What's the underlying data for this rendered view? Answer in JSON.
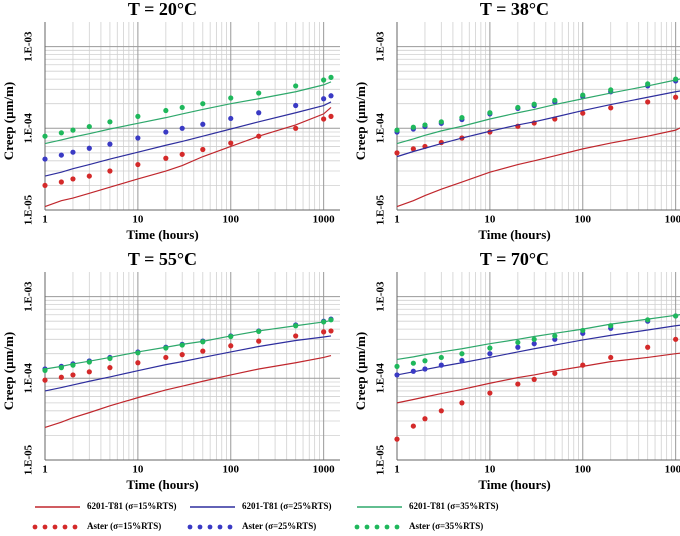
{
  "chart_data": [
    {
      "type": "line",
      "title": "T = 20°C",
      "x_label": "Time (hours)",
      "y_label": "Creep (µm/m)",
      "log_x": true,
      "log_y": true,
      "grid": true,
      "xlim": [
        1,
        1500
      ],
      "ylim": [
        1e-05,
        0.002
      ],
      "xticks": [
        1,
        10,
        100,
        1000
      ],
      "yticks": [
        {
          "value": 1e-05,
          "label": "1.E-05"
        },
        {
          "value": 0.0001,
          "label": "1.E-04"
        },
        {
          "value": 0.001,
          "label": "1.E-03"
        }
      ],
      "x": [
        1,
        1.5,
        2,
        3,
        5,
        10,
        20,
        30,
        50,
        100,
        200,
        500,
        1000,
        1200
      ],
      "series": [
        {
          "name": "6201-T81 (σ=15%RTS)",
          "style": "line",
          "color": "#c0272d",
          "values": [
            1.1e-05,
            1.3e-05,
            1.4e-05,
            1.6e-05,
            1.9e-05,
            2.4e-05,
            3e-05,
            3.5e-05,
            4.5e-05,
            6e-05,
            8e-05,
            0.00011,
            0.00015,
            0.00018
          ]
        },
        {
          "name": "Aster  (σ=15%RTS)",
          "style": "dots",
          "color": "#d42a2a",
          "values": [
            2e-05,
            2.2e-05,
            2.4e-05,
            2.6e-05,
            3e-05,
            3.6e-05,
            4.3e-05,
            4.8e-05,
            5.5e-05,
            6.6e-05,
            8e-05,
            0.0001,
            0.00013,
            0.00014
          ]
        },
        {
          "name": "6201-T81 (σ=25%RTS)",
          "style": "line",
          "color": "#2e2e9e",
          "values": [
            2.6e-05,
            2.9e-05,
            3.2e-05,
            3.6e-05,
            4.2e-05,
            5.1e-05,
            6.2e-05,
            6.9e-05,
            8e-05,
            9.8e-05,
            0.00012,
            0.000155,
            0.00019,
            0.00021
          ]
        },
        {
          "name": "Aster  (σ=25%RTS)",
          "style": "dots",
          "color": "#3a3ac4",
          "values": [
            4.2e-05,
            4.7e-05,
            5.1e-05,
            5.7e-05,
            6.4e-05,
            7.6e-05,
            9e-05,
            0.0001,
            0.000112,
            0.000132,
            0.000155,
            0.00019,
            0.00023,
            0.00025
          ]
        },
        {
          "name": "6201-T81 (σ=35%RTS)",
          "style": "line",
          "color": "#2ea86b",
          "values": [
            6.5e-05,
            7.2e-05,
            7.8e-05,
            8.6e-05,
            9.8e-05,
            0.000115,
            0.000135,
            0.00015,
            0.00017,
            0.0002,
            0.00023,
            0.00028,
            0.00034,
            0.00037
          ]
        },
        {
          "name": "Aster  (σ=35%RTS)",
          "style": "dots",
          "color": "#1fb85c",
          "values": [
            8e-05,
            8.8e-05,
            9.5e-05,
            0.000105,
            0.00012,
            0.00014,
            0.000165,
            0.00018,
            0.0002,
            0.000235,
            0.00027,
            0.00033,
            0.00039,
            0.00042
          ]
        }
      ]
    },
    {
      "type": "line",
      "title": "T = 38°C",
      "x_label": "Time (hours)",
      "y_label": "Creep (µm/m)",
      "log_x": true,
      "log_y": true,
      "grid": true,
      "xlim": [
        1,
        1500
      ],
      "ylim": [
        1e-05,
        0.002
      ],
      "xticks": [
        1,
        10,
        100,
        1000
      ],
      "yticks": [
        {
          "value": 1e-05,
          "label": "1.E-05"
        },
        {
          "value": 0.0001,
          "label": "1.E-04"
        },
        {
          "value": 0.001,
          "label": "1.E-03"
        }
      ],
      "x": [
        1,
        1.5,
        2,
        3,
        5,
        10,
        20,
        30,
        50,
        100,
        200,
        500,
        1000,
        1200
      ],
      "series": [
        {
          "name": "6201-T81 (σ=15%RTS)",
          "style": "line",
          "color": "#c0272d",
          "values": [
            1.1e-05,
            1.3e-05,
            1.5e-05,
            1.8e-05,
            2.2e-05,
            2.9e-05,
            3.6e-05,
            4e-05,
            4.6e-05,
            5.6e-05,
            6.6e-05,
            8e-05,
            9.5e-05,
            0.000105
          ]
        },
        {
          "name": "Aster  (σ=15%RTS)",
          "style": "dots",
          "color": "#d42a2a",
          "values": [
            5e-05,
            5.6e-05,
            6e-05,
            6.7e-05,
            7.6e-05,
            9e-05,
            0.000106,
            0.000116,
            0.00013,
            0.000153,
            0.000178,
            0.00021,
            0.00024,
            0.00025
          ]
        },
        {
          "name": "6201-T81 (σ=25%RTS)",
          "style": "line",
          "color": "#2e2e9e",
          "values": [
            4.5e-05,
            5.2e-05,
            5.7e-05,
            6.5e-05,
            7.6e-05,
            9.2e-05,
            0.00011,
            0.00012,
            0.000137,
            0.000165,
            0.000195,
            0.00024,
            0.00028,
            0.00029
          ]
        },
        {
          "name": "Aster  (σ=25%RTS)",
          "style": "dots",
          "color": "#3a3ac4",
          "values": [
            9e-05,
            9.8e-05,
            0.000105,
            0.000115,
            0.000128,
            0.00015,
            0.000175,
            0.00019,
            0.00021,
            0.000245,
            0.00028,
            0.00033,
            0.00038,
            0.0004
          ]
        },
        {
          "name": "6201-T81 (σ=35%RTS)",
          "style": "line",
          "color": "#2ea86b",
          "values": [
            6.5e-05,
            7.4e-05,
            8.2e-05,
            9.3e-05,
            0.000106,
            0.00013,
            0.000155,
            0.00017,
            0.000195,
            0.00023,
            0.00027,
            0.00033,
            0.00039,
            0.00041
          ]
        },
        {
          "name": "Aster  (σ=35%RTS)",
          "style": "dots",
          "color": "#1fb85c",
          "values": [
            9.5e-05,
            0.000103,
            0.00011,
            0.00012,
            0.000135,
            0.000155,
            0.00018,
            0.000197,
            0.00022,
            0.000255,
            0.000295,
            0.00035,
            0.0004,
            0.00042
          ]
        }
      ]
    },
    {
      "type": "line",
      "title": "T = 55°C",
      "x_label": "Time (hours)",
      "y_label": "Creep (µm/m)",
      "log_x": true,
      "log_y": true,
      "grid": true,
      "xlim": [
        1,
        1500
      ],
      "ylim": [
        1e-05,
        0.002
      ],
      "xticks": [
        1,
        10,
        100,
        1000
      ],
      "yticks": [
        {
          "value": 1e-05,
          "label": "1.E-05"
        },
        {
          "value": 0.0001,
          "label": "1.E-04"
        },
        {
          "value": 0.001,
          "label": "1.E-03"
        }
      ],
      "x": [
        1,
        1.5,
        2,
        3,
        5,
        10,
        20,
        30,
        50,
        100,
        200,
        500,
        1000,
        1200
      ],
      "series": [
        {
          "name": "6201-T81 (σ=15%RTS)",
          "style": "line",
          "color": "#c0272d",
          "values": [
            2.5e-05,
            2.9e-05,
            3.3e-05,
            3.8e-05,
            4.6e-05,
            5.8e-05,
            7.2e-05,
            8e-05,
            9.2e-05,
            0.00011,
            0.00013,
            0.000155,
            0.00018,
            0.00019
          ]
        },
        {
          "name": "Aster  (σ=15%RTS)",
          "style": "dots",
          "color": "#d42a2a",
          "values": [
            9.5e-05,
            0.000103,
            0.00011,
            0.00012,
            0.000135,
            0.000155,
            0.00018,
            0.000195,
            0.000215,
            0.00025,
            0.000285,
            0.00033,
            0.00037,
            0.00038
          ]
        },
        {
          "name": "6201-T81 (σ=25%RTS)",
          "style": "line",
          "color": "#2e2e9e",
          "values": [
            7e-05,
            7.7e-05,
            8.3e-05,
            9.2e-05,
            0.000104,
            0.000124,
            0.000147,
            0.00016,
            0.00018,
            0.00021,
            0.000245,
            0.00029,
            0.00032,
            0.00033
          ]
        },
        {
          "name": "Aster  (σ=25%RTS)",
          "style": "dots",
          "color": "#3a3ac4",
          "values": [
            0.00013,
            0.00014,
            0.00015,
            0.000163,
            0.00018,
            0.00021,
            0.00024,
            0.00026,
            0.000285,
            0.00033,
            0.00038,
            0.00045,
            0.0005,
            0.00053
          ]
        },
        {
          "name": "6201-T81 (σ=35%RTS)",
          "style": "line",
          "color": "#2ea86b",
          "values": [
            0.00013,
            0.00014,
            0.00015,
            0.000162,
            0.00018,
            0.00021,
            0.00024,
            0.00026,
            0.000283,
            0.00033,
            0.00038,
            0.00044,
            0.00049,
            0.00051
          ]
        },
        {
          "name": "Aster  (σ=35%RTS)",
          "style": "dots",
          "color": "#1fb85c",
          "values": [
            0.000125,
            0.000135,
            0.000145,
            0.000158,
            0.000175,
            0.000205,
            0.000235,
            0.000255,
            0.00028,
            0.000325,
            0.000375,
            0.00044,
            0.00049,
            0.00052
          ]
        }
      ]
    },
    {
      "type": "line",
      "title": "T = 70°C",
      "x_label": "Time (hours)",
      "y_label": "Creep (µm/m)",
      "log_x": true,
      "log_y": true,
      "grid": true,
      "xlim": [
        1,
        1500
      ],
      "ylim": [
        1e-05,
        0.002
      ],
      "xticks": [
        1,
        10,
        100,
        1000
      ],
      "yticks": [
        {
          "value": 1e-05,
          "label": "1.E-05"
        },
        {
          "value": 0.0001,
          "label": "1.E-04"
        },
        {
          "value": 0.001,
          "label": "1.E-03"
        }
      ],
      "x": [
        1,
        1.5,
        2,
        3,
        5,
        10,
        20,
        30,
        50,
        100,
        200,
        500,
        1000,
        1200
      ],
      "series": [
        {
          "name": "6201-T81 (σ=15%RTS)",
          "style": "line",
          "color": "#c0272d",
          "values": [
            5e-05,
            5.5e-05,
            5.9e-05,
            6.5e-05,
            7.3e-05,
            8.7e-05,
            0.000102,
            0.00011,
            0.000123,
            0.00014,
            0.00016,
            0.00018,
            0.0002,
            0.000205
          ]
        },
        {
          "name": "Aster  (σ=15%RTS)",
          "style": "dots",
          "color": "#d42a2a",
          "values": [
            1.8e-05,
            2.6e-05,
            3.2e-05,
            4e-05,
            5e-05,
            6.6e-05,
            8.5e-05,
            9.7e-05,
            0.000115,
            0.000145,
            0.00018,
            0.00024,
            0.0003,
            0.00033
          ]
        },
        {
          "name": "6201-T81 (σ=25%RTS)",
          "style": "line",
          "color": "#2e2e9e",
          "values": [
            0.00011,
            0.00012,
            0.000128,
            0.00014,
            0.000155,
            0.00018,
            0.00021,
            0.00023,
            0.000255,
            0.000295,
            0.000335,
            0.00039,
            0.00044,
            0.00045
          ]
        },
        {
          "name": "Aster  (σ=25%RTS)",
          "style": "dots",
          "color": "#3a3ac4",
          "values": [
            0.00011,
            0.000122,
            0.00013,
            0.000145,
            0.000165,
            0.0002,
            0.00024,
            0.000265,
            0.0003,
            0.000355,
            0.00041,
            0.0005,
            0.00058,
            0.00061
          ]
        },
        {
          "name": "6201-T81 (σ=35%RTS)",
          "style": "line",
          "color": "#2ea86b",
          "values": [
            0.00017,
            0.000183,
            0.000195,
            0.00021,
            0.00023,
            0.000265,
            0.0003,
            0.000325,
            0.000355,
            0.0004,
            0.00046,
            0.00053,
            0.00059,
            0.00061
          ]
        },
        {
          "name": "Aster  (σ=35%RTS)",
          "style": "dots",
          "color": "#1fb85c",
          "values": [
            0.00014,
            0.000153,
            0.000164,
            0.00018,
            0.0002,
            0.000235,
            0.000275,
            0.0003,
            0.00033,
            0.000385,
            0.00044,
            0.00052,
            0.00058,
            0.00061
          ]
        }
      ]
    }
  ]
}
